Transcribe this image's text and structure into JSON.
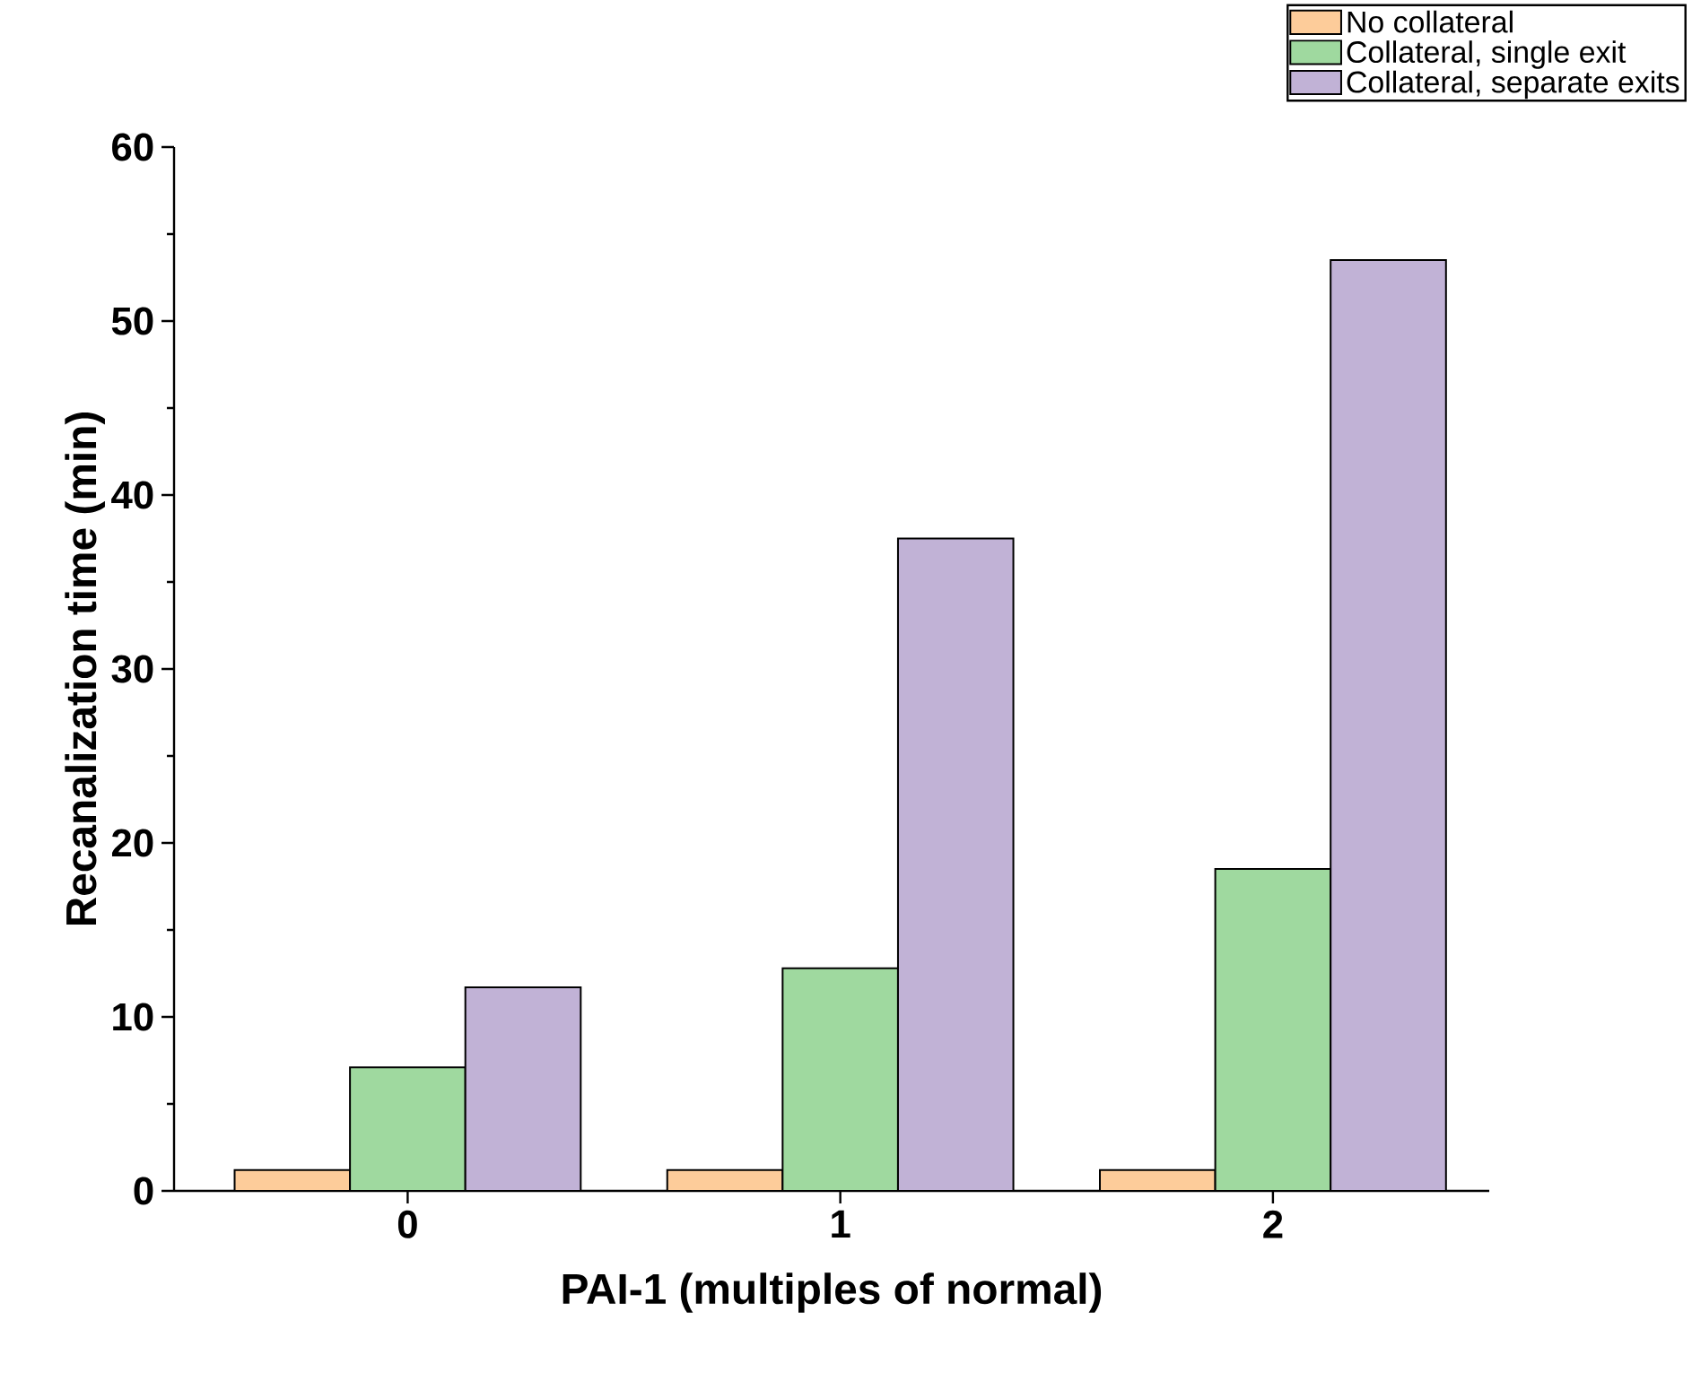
{
  "chart_data": {
    "type": "bar",
    "xlabel": "PAI-1 (multiples of normal)",
    "ylabel": "Recanalization time (min)",
    "categories": [
      "0",
      "1",
      "2"
    ],
    "series": [
      {
        "name": "No collateral",
        "color": "#fdcc9a",
        "values": [
          1.2,
          1.2,
          1.2
        ]
      },
      {
        "name": "Collateral, single exit",
        "color": "#9fd99f",
        "values": [
          7.1,
          12.8,
          18.5
        ]
      },
      {
        "name": "Collateral, separate exits",
        "color": "#c1b2d6",
        "values": [
          11.7,
          37.5,
          53.5
        ]
      }
    ],
    "ylim": [
      0,
      60
    ],
    "yticks": [
      0,
      10,
      20,
      30,
      40,
      50,
      60
    ],
    "grid": false,
    "legend": "top right"
  }
}
